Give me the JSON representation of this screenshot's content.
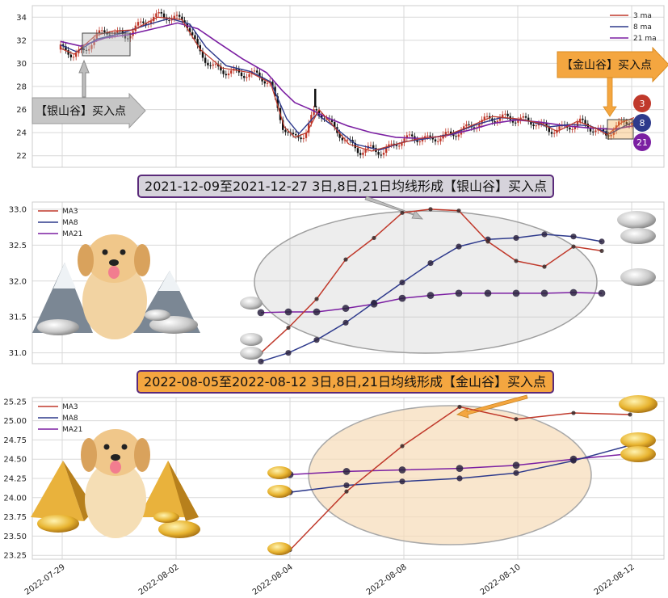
{
  "colors": {
    "ma3": "#c0392b",
    "ma8": "#2e3a8c",
    "ma21": "#7b1fa2",
    "up": "#c0392b",
    "down": "#111111",
    "silver": "#d8d8d8",
    "gold": "#f4a640",
    "gold_fill": "#f7dcb8"
  },
  "top_chart": {
    "legend": [
      "3 ma",
      "8 ma",
      "21 ma"
    ],
    "yticks": [
      22,
      24,
      26,
      28,
      30,
      32,
      34
    ],
    "left_arrow_label": "【银山谷】买入点",
    "right_arrow_label": "【金山谷】买入点",
    "badges": [
      "3",
      "8",
      "21"
    ]
  },
  "banners": {
    "silver": "2021-12-09至2021-12-27 3日,8日,21日均线形成【银山谷】买入点",
    "gold": "2022-08-05至2022-08-12 3日,8日,21日均线形成【金山谷】买入点"
  },
  "x_axis_labels": [
    "2022-07-29",
    "2022-08-02",
    "2022-08-04",
    "2022-08-08",
    "2022-08-10",
    "2022-08-12"
  ],
  "chart_data": [
    {
      "type": "line",
      "title": "",
      "series": [
        {
          "name": "MA3",
          "values": [
            31.0,
            31.35,
            31.75,
            32.3,
            32.6,
            32.95,
            33.0,
            32.98,
            32.55,
            32.28,
            32.2,
            32.48,
            32.42
          ]
        },
        {
          "name": "MA8",
          "values": [
            30.88,
            31.0,
            31.18,
            31.42,
            31.7,
            31.98,
            32.25,
            32.48,
            32.58,
            32.6,
            32.65,
            32.62,
            32.55
          ]
        },
        {
          "name": "MA21",
          "values": [
            31.56,
            31.57,
            31.57,
            31.62,
            31.68,
            31.76,
            31.8,
            31.83,
            31.83,
            31.83,
            31.83,
            31.84,
            31.83
          ]
        }
      ],
      "legend": [
        "MA3",
        "MA8",
        "MA21"
      ],
      "yticks": [
        31.0,
        31.5,
        32.0,
        32.5,
        33.0
      ],
      "ylim": [
        30.85,
        33.1
      ]
    },
    {
      "type": "line",
      "title": "",
      "series": [
        {
          "name": "MA3",
          "values": [
            23.32,
            24.08,
            24.67,
            25.18,
            25.02,
            25.1,
            25.08
          ]
        },
        {
          "name": "MA8",
          "values": [
            24.07,
            24.16,
            24.21,
            24.25,
            24.32,
            24.48,
            24.68
          ]
        },
        {
          "name": "MA21",
          "values": [
            24.3,
            24.34,
            24.36,
            24.38,
            24.42,
            24.5,
            24.57
          ]
        }
      ],
      "legend": [
        "MA3",
        "MA8",
        "MA21"
      ],
      "yticks": [
        23.25,
        23.5,
        23.75,
        24.0,
        24.25,
        24.5,
        24.75,
        25.0,
        25.25
      ],
      "ylim": [
        23.2,
        25.3
      ]
    }
  ]
}
